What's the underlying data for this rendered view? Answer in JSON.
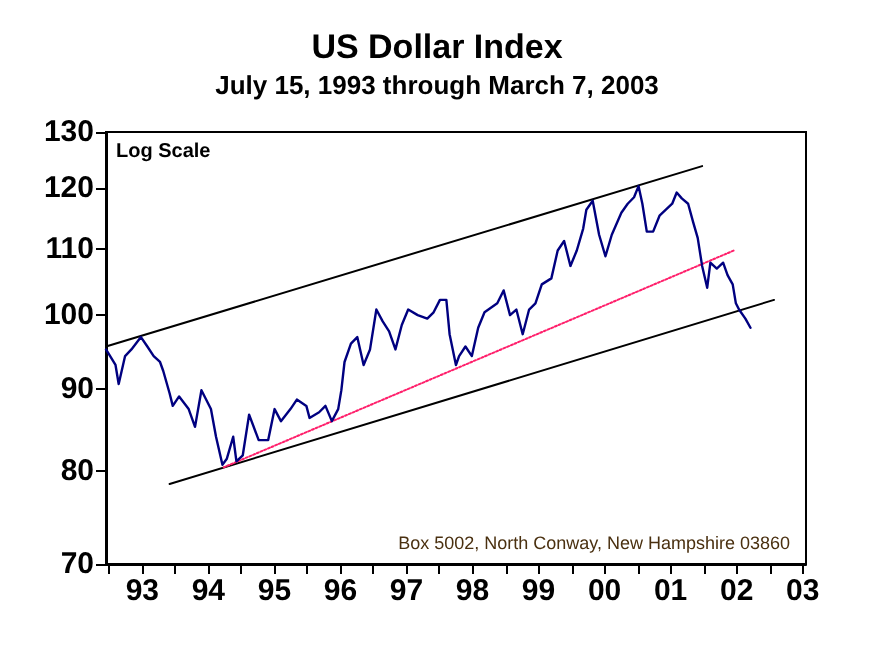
{
  "chart_data": {
    "type": "line",
    "title": "US Dollar Index",
    "subtitle": "July 15, 1993 through March 7, 2003",
    "annotations": [
      "Log Scale",
      "Box 5002, North Conway, New Hampshire 03860"
    ],
    "log": true,
    "grid": false,
    "marker": "none",
    "xlim": [
      1992.45,
      2003.05
    ],
    "xticks": [
      {
        "value": 1992.5,
        "label": null
      },
      {
        "value": 1993,
        "label": "93"
      },
      {
        "value": 1993.5,
        "label": null
      },
      {
        "value": 1994,
        "label": "94"
      },
      {
        "value": 1994.5,
        "label": null
      },
      {
        "value": 1995,
        "label": "95"
      },
      {
        "value": 1995.5,
        "label": null
      },
      {
        "value": 1996,
        "label": "96"
      },
      {
        "value": 1996.5,
        "label": null
      },
      {
        "value": 1997,
        "label": "97"
      },
      {
        "value": 1997.5,
        "label": null
      },
      {
        "value": 1998,
        "label": "98"
      },
      {
        "value": 1998.5,
        "label": null
      },
      {
        "value": 1999,
        "label": "99"
      },
      {
        "value": 1999.5,
        "label": null
      },
      {
        "value": 2000,
        "label": "00"
      },
      {
        "value": 2000.5,
        "label": null
      },
      {
        "value": 2001,
        "label": "01"
      },
      {
        "value": 2001.5,
        "label": null
      },
      {
        "value": 2002,
        "label": "02"
      },
      {
        "value": 2002.5,
        "label": null
      },
      {
        "value": 2003,
        "label": "03"
      }
    ],
    "ylim": [
      70,
      130
    ],
    "yticks": [
      70,
      80,
      90,
      100,
      110,
      120,
      130
    ],
    "series": [
      {
        "color": "#000080",
        "line_style": "solid",
        "x": [
          1992.45,
          1992.594,
          1992.642,
          1992.739,
          1992.835,
          1992.979,
          1993.076,
          1993.172,
          1993.268,
          1993.317,
          1993.413,
          1993.461,
          1993.557,
          1993.702,
          1993.798,
          1993.895,
          1994.039,
          1994.116,
          1994.213,
          1994.28,
          1994.376,
          1994.425,
          1994.521,
          1994.617,
          1994.762,
          1994.906,
          1995.003,
          1995.099,
          1995.243,
          1995.34,
          1995.484,
          1995.532,
          1995.677,
          1995.773,
          1995.87,
          1995.966,
          1996.014,
          1996.062,
          1996.159,
          1996.255,
          1996.351,
          1996.448,
          1996.544,
          1996.64,
          1996.737,
          1996.833,
          1996.929,
          1997.026,
          1997.17,
          1997.315,
          1997.411,
          1997.507,
          1997.604,
          1997.653,
          1997.749,
          1997.797,
          1997.893,
          1997.99,
          1998.086,
          1998.182,
          1998.375,
          1998.471,
          1998.568,
          1998.664,
          1998.76,
          1998.857,
          1998.953,
          1999.049,
          1999.194,
          1999.29,
          1999.387,
          1999.483,
          1999.579,
          1999.676,
          1999.724,
          1999.82,
          1999.917,
          2000.013,
          2000.109,
          2000.254,
          2000.35,
          2000.446,
          2000.514,
          2000.572,
          2000.639,
          2000.735,
          2000.832,
          2000.928,
          2001.024,
          2001.092,
          2001.169,
          2001.265,
          2001.342,
          2001.41,
          2001.477,
          2001.554,
          2001.602,
          2001.699,
          2001.795,
          2001.862,
          2001.94,
          2001.988,
          2002.036,
          2002.132,
          2002.209
        ],
        "values": [
          95.2,
          93.1,
          90.6,
          94.3,
          95.2,
          96.9,
          95.6,
          94.3,
          93.5,
          92.3,
          89.4,
          87.8,
          89.0,
          87.4,
          85.2,
          89.8,
          87.4,
          84.0,
          80.7,
          81.4,
          84.0,
          81.1,
          81.8,
          86.7,
          83.6,
          83.6,
          87.4,
          85.9,
          87.4,
          88.6,
          87.8,
          86.3,
          87.0,
          87.8,
          85.9,
          87.4,
          89.8,
          93.5,
          96.0,
          96.9,
          93.1,
          95.2,
          100.8,
          99.1,
          97.7,
          95.2,
          98.6,
          100.8,
          100.0,
          99.5,
          100.4,
          102.2,
          102.2,
          97.3,
          93.1,
          94.3,
          95.6,
          94.3,
          98.2,
          100.4,
          101.7,
          103.6,
          100.0,
          100.8,
          97.3,
          100.8,
          101.7,
          104.5,
          105.4,
          109.7,
          111.2,
          107.3,
          109.7,
          113.2,
          116.3,
          117.8,
          112.2,
          108.8,
          112.2,
          115.8,
          117.3,
          118.4,
          120.3,
          117.3,
          112.7,
          112.7,
          115.3,
          116.3,
          117.3,
          119.2,
          118.2,
          117.3,
          114.2,
          111.7,
          107.3,
          104.0,
          107.8,
          106.9,
          107.8,
          105.9,
          104.5,
          101.7,
          100.8,
          99.5,
          98.2
        ]
      },
      {
        "color": "#000000",
        "line_style": "solid",
        "x": [
          1992.45,
          2001.477
        ],
        "values": [
          95.6,
          123.8
        ]
      },
      {
        "color": "#000000",
        "line_style": "solid",
        "x": [
          1993.413,
          2002.566
        ],
        "values": [
          78.5,
          102.2
        ]
      },
      {
        "color": "#ff1f6b",
        "line_style": "dotted",
        "x": [
          1994.232,
          2001.959
        ],
        "values": [
          80.4,
          109.7
        ]
      }
    ]
  }
}
